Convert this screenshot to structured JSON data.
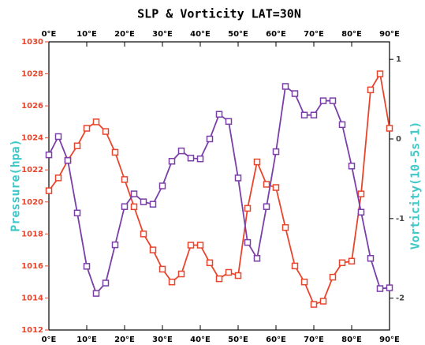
{
  "chart_data": {
    "type": "line",
    "title": "SLP & Vorticity LAT=30N",
    "ylabel": "Pressure(hpa)",
    "y2label": "Vorticity(10-5s-1)",
    "x": [
      0,
      2.5,
      5,
      7.5,
      10,
      12.5,
      15,
      17.5,
      20,
      22.5,
      25,
      27.5,
      30,
      32.5,
      35,
      37.5,
      40,
      42.5,
      45,
      47.5,
      50,
      52.5,
      55,
      57.5,
      60,
      62.5,
      65,
      67.5,
      70,
      72.5,
      75,
      77.5,
      80,
      82.5,
      85,
      87.5,
      90
    ],
    "xlim": [
      0,
      90
    ],
    "xticks": [
      {
        "value": 0,
        "label": "0°E"
      },
      {
        "value": 10,
        "label": "10°E"
      },
      {
        "value": 20,
        "label": "20°E"
      },
      {
        "value": 30,
        "label": "30°E"
      },
      {
        "value": 40,
        "label": "40°E"
      },
      {
        "value": 50,
        "label": "50°E"
      },
      {
        "value": 60,
        "label": "60°E"
      },
      {
        "value": 70,
        "label": "70°E"
      },
      {
        "value": 80,
        "label": "80°E"
      },
      {
        "value": 90,
        "label": "90°E"
      }
    ],
    "ylim": [
      1012,
      1030
    ],
    "yticks": [
      1012,
      1014,
      1016,
      1018,
      1020,
      1022,
      1024,
      1026,
      1028,
      1030
    ],
    "y2lim": [
      -2.4,
      1.22
    ],
    "y2ticks": [
      -2,
      -1,
      0,
      1
    ],
    "series": [
      {
        "name": "SLP",
        "color": "#e8452c",
        "axis": "y",
        "values": [
          1020.7,
          1021.5,
          1022.6,
          1023.5,
          1024.6,
          1025.0,
          1024.4,
          1023.1,
          1021.4,
          1019.7,
          1018.0,
          1017.0,
          1015.8,
          1015.0,
          1015.5,
          1017.3,
          1017.3,
          1016.2,
          1015.2,
          1015.6,
          1015.4,
          1019.6,
          1022.5,
          1021.1,
          1020.9,
          1018.4,
          1016.0,
          1015.0,
          1013.6,
          1013.8,
          1015.3,
          1016.2,
          1016.3,
          1020.5,
          1027.0,
          1028.0,
          1024.6
        ]
      },
      {
        "name": "Vorticity",
        "color": "#7a3fa8",
        "axis": "y2",
        "values": [
          -0.2,
          0.03,
          -0.27,
          -0.93,
          -1.6,
          -1.94,
          -1.81,
          -1.33,
          -0.85,
          -0.69,
          -0.79,
          -0.82,
          -0.59,
          -0.28,
          -0.15,
          -0.24,
          -0.25,
          0.0,
          0.31,
          0.22,
          -0.49,
          -1.3,
          -1.5,
          -0.85,
          -0.16,
          0.66,
          0.57,
          0.3,
          0.3,
          0.48,
          0.48,
          0.18,
          -0.34,
          -0.92,
          -1.5,
          -1.88,
          -1.87
        ]
      }
    ]
  }
}
